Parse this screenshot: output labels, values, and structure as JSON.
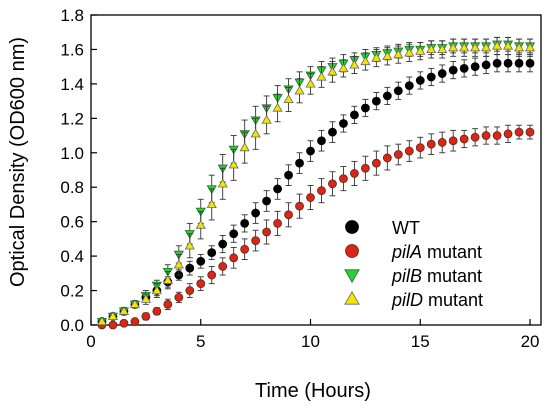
{
  "chart_data": {
    "type": "scatter",
    "xlabel": "Time (Hours)",
    "ylabel": "Optical Density (OD600 nm)",
    "xlim": [
      0,
      20.5
    ],
    "ylim": [
      0,
      1.8
    ],
    "xticks": [
      0,
      5,
      10,
      15,
      20
    ],
    "yticks": [
      0.0,
      0.2,
      0.4,
      0.6,
      0.8,
      1.0,
      1.2,
      1.4,
      1.6,
      1.8
    ],
    "xticklabels": [
      "0",
      "5",
      "10",
      "15",
      "20"
    ],
    "yticklabels": [
      "0.0",
      "0.2",
      "0.4",
      "0.6",
      "0.8",
      "1.0",
      "1.2",
      "1.4",
      "1.6",
      "1.8"
    ],
    "grid": false,
    "legend_position": "lower-right",
    "series": [
      {
        "name": "WT",
        "marker": "circle",
        "color": "#000000",
        "x": [
          0.5,
          1.0,
          1.5,
          2.0,
          2.5,
          3.0,
          3.5,
          4.0,
          4.5,
          5.0,
          5.5,
          6.0,
          6.5,
          7.0,
          7.5,
          8.0,
          8.5,
          9.0,
          9.5,
          10.0,
          10.5,
          11.0,
          11.5,
          12.0,
          12.5,
          13.0,
          13.5,
          14.0,
          14.5,
          15.0,
          15.5,
          16.0,
          16.5,
          17.0,
          17.5,
          18.0,
          18.5,
          19.0,
          19.5,
          20.0
        ],
        "y": [
          0.02,
          0.05,
          0.08,
          0.12,
          0.16,
          0.2,
          0.25,
          0.29,
          0.33,
          0.37,
          0.42,
          0.47,
          0.53,
          0.59,
          0.65,
          0.72,
          0.79,
          0.87,
          0.94,
          1.01,
          1.07,
          1.12,
          1.17,
          1.22,
          1.26,
          1.3,
          1.33,
          1.36,
          1.39,
          1.42,
          1.44,
          1.46,
          1.48,
          1.49,
          1.5,
          1.51,
          1.52,
          1.52,
          1.52,
          1.52
        ],
        "err": [
          0.01,
          0.01,
          0.02,
          0.02,
          0.02,
          0.03,
          0.03,
          0.03,
          0.04,
          0.04,
          0.04,
          0.05,
          0.05,
          0.05,
          0.06,
          0.06,
          0.06,
          0.06,
          0.06,
          0.06,
          0.06,
          0.06,
          0.05,
          0.05,
          0.05,
          0.05,
          0.05,
          0.05,
          0.05,
          0.05,
          0.05,
          0.05,
          0.05,
          0.05,
          0.05,
          0.05,
          0.05,
          0.05,
          0.05,
          0.05
        ]
      },
      {
        "name": "pilA mutant",
        "marker": "circle",
        "color": "#d9251c",
        "edge": "#5a2a10",
        "x": [
          0.5,
          1.0,
          1.5,
          2.0,
          2.5,
          3.0,
          3.5,
          4.0,
          4.5,
          5.0,
          5.5,
          6.0,
          6.5,
          7.0,
          7.5,
          8.0,
          8.5,
          9.0,
          9.5,
          10.0,
          10.5,
          11.0,
          11.5,
          12.0,
          12.5,
          13.0,
          13.5,
          14.0,
          14.5,
          15.0,
          15.5,
          16.0,
          16.5,
          17.0,
          17.5,
          18.0,
          18.5,
          19.0,
          19.5,
          20.0
        ],
        "y": [
          0.0,
          0.0,
          0.01,
          0.02,
          0.05,
          0.08,
          0.12,
          0.16,
          0.2,
          0.24,
          0.29,
          0.34,
          0.39,
          0.44,
          0.49,
          0.54,
          0.59,
          0.64,
          0.69,
          0.74,
          0.78,
          0.82,
          0.85,
          0.88,
          0.91,
          0.94,
          0.97,
          0.99,
          1.01,
          1.03,
          1.05,
          1.06,
          1.07,
          1.08,
          1.09,
          1.1,
          1.1,
          1.11,
          1.12,
          1.12
        ],
        "err": [
          0.01,
          0.01,
          0.01,
          0.01,
          0.02,
          0.02,
          0.03,
          0.03,
          0.04,
          0.04,
          0.05,
          0.05,
          0.06,
          0.06,
          0.06,
          0.07,
          0.07,
          0.07,
          0.07,
          0.07,
          0.07,
          0.07,
          0.07,
          0.07,
          0.07,
          0.07,
          0.07,
          0.06,
          0.06,
          0.06,
          0.06,
          0.06,
          0.06,
          0.05,
          0.05,
          0.05,
          0.05,
          0.05,
          0.04,
          0.04
        ]
      },
      {
        "name": "pilB mutant",
        "marker": "triangle-down",
        "color": "#2ecc40",
        "x": [
          0.5,
          1.0,
          1.5,
          2.0,
          2.5,
          3.0,
          3.5,
          4.0,
          4.5,
          5.0,
          5.5,
          6.0,
          6.5,
          7.0,
          7.5,
          8.0,
          8.5,
          9.0,
          9.5,
          10.0,
          10.5,
          11.0,
          11.5,
          12.0,
          12.5,
          13.0,
          13.5,
          14.0,
          14.5,
          15.0,
          15.5,
          16.0,
          16.5,
          17.0,
          17.5,
          18.0,
          18.5,
          19.0,
          19.5,
          20.0
        ],
        "y": [
          0.02,
          0.05,
          0.08,
          0.12,
          0.17,
          0.23,
          0.31,
          0.41,
          0.53,
          0.66,
          0.79,
          0.91,
          1.02,
          1.11,
          1.19,
          1.26,
          1.32,
          1.37,
          1.41,
          1.45,
          1.48,
          1.5,
          1.52,
          1.54,
          1.56,
          1.57,
          1.58,
          1.59,
          1.6,
          1.6,
          1.61,
          1.61,
          1.62,
          1.62,
          1.62,
          1.62,
          1.63,
          1.63,
          1.62,
          1.62
        ],
        "err": [
          0.01,
          0.01,
          0.02,
          0.02,
          0.03,
          0.03,
          0.04,
          0.05,
          0.06,
          0.07,
          0.08,
          0.08,
          0.08,
          0.08,
          0.08,
          0.07,
          0.07,
          0.06,
          0.06,
          0.05,
          0.05,
          0.05,
          0.05,
          0.04,
          0.04,
          0.04,
          0.04,
          0.04,
          0.04,
          0.04,
          0.04,
          0.04,
          0.04,
          0.04,
          0.04,
          0.04,
          0.04,
          0.04,
          0.04,
          0.04
        ]
      },
      {
        "name": "pilD mutant",
        "marker": "triangle-up",
        "color": "#f2e600",
        "x": [
          0.5,
          1.0,
          1.5,
          2.0,
          2.5,
          3.0,
          3.5,
          4.0,
          4.5,
          5.0,
          5.5,
          6.0,
          6.5,
          7.0,
          7.5,
          8.0,
          8.5,
          9.0,
          9.5,
          10.0,
          10.5,
          11.0,
          11.5,
          12.0,
          12.5,
          13.0,
          13.5,
          14.0,
          14.5,
          15.0,
          15.5,
          16.0,
          16.5,
          17.0,
          17.5,
          18.0,
          18.5,
          19.0,
          19.5,
          20.0
        ],
        "y": [
          0.02,
          0.05,
          0.08,
          0.12,
          0.15,
          0.2,
          0.26,
          0.35,
          0.46,
          0.58,
          0.7,
          0.82,
          0.93,
          1.03,
          1.11,
          1.19,
          1.26,
          1.31,
          1.36,
          1.4,
          1.44,
          1.47,
          1.49,
          1.51,
          1.53,
          1.55,
          1.56,
          1.57,
          1.58,
          1.59,
          1.6,
          1.6,
          1.61,
          1.61,
          1.61,
          1.61,
          1.62,
          1.62,
          1.61,
          1.61
        ],
        "err": [
          0.01,
          0.01,
          0.02,
          0.02,
          0.03,
          0.04,
          0.05,
          0.06,
          0.07,
          0.08,
          0.09,
          0.09,
          0.09,
          0.09,
          0.09,
          0.08,
          0.08,
          0.07,
          0.07,
          0.06,
          0.06,
          0.06,
          0.05,
          0.05,
          0.05,
          0.05,
          0.05,
          0.05,
          0.05,
          0.05,
          0.05,
          0.05,
          0.05,
          0.05,
          0.05,
          0.05,
          0.05,
          0.05,
          0.05,
          0.05
        ]
      }
    ],
    "legend": [
      {
        "italic": "",
        "rest": "WT"
      },
      {
        "italic": "pilA",
        "rest": " mutant"
      },
      {
        "italic": "pilB",
        "rest": " mutant"
      },
      {
        "italic": "pilD",
        "rest": " mutant"
      }
    ]
  }
}
